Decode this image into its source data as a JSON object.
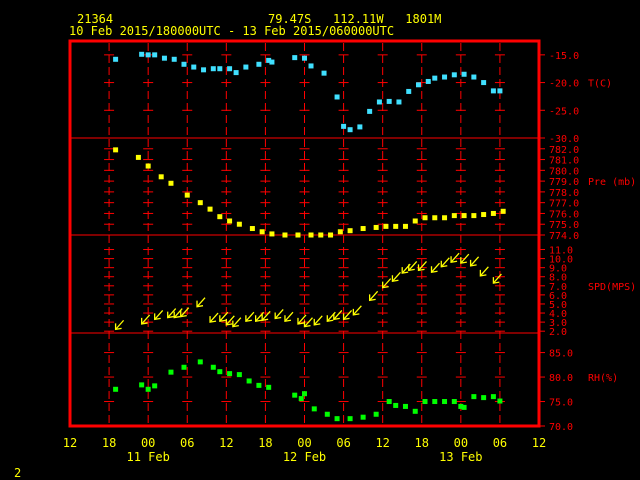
{
  "header": {
    "station_id": "21364",
    "location": "79.47S   112.11W   1801M",
    "date_range": "10 Feb 2015/180000UTC - 13 Feb 2015/060000UTC"
  },
  "page_number": "2",
  "colors": {
    "background": "#000000",
    "frame": "#ff0000",
    "grid": "#ff0000",
    "panel_label": "#ff0000",
    "axis_text": "#ffff00",
    "temperature": "#40e0ff",
    "pressure": "#ffff00",
    "wind": "#ffff00",
    "humidity": "#00ff00"
  },
  "chart_data": {
    "type": "scatter",
    "x_unit": "hours since 10 Feb 2015 12:00 UTC",
    "x_ticks": [
      {
        "h": 0,
        "label": "12"
      },
      {
        "h": 6,
        "label": "18"
      },
      {
        "h": 12,
        "label": "00"
      },
      {
        "h": 18,
        "label": "06"
      },
      {
        "h": 24,
        "label": "12"
      },
      {
        "h": 30,
        "label": "18"
      },
      {
        "h": 36,
        "label": "00"
      },
      {
        "h": 42,
        "label": "06"
      },
      {
        "h": 48,
        "label": "12"
      },
      {
        "h": 54,
        "label": "18"
      },
      {
        "h": 60,
        "label": "00"
      },
      {
        "h": 66,
        "label": "06"
      },
      {
        "h": 72,
        "label": "12"
      }
    ],
    "day_labels": [
      {
        "h": 12,
        "label": "11 Feb"
      },
      {
        "h": 36,
        "label": "12 Feb"
      },
      {
        "h": 60,
        "label": "13 Feb"
      }
    ],
    "panels": [
      {
        "name": "temperature",
        "label": "T(C)",
        "ylim": [
          -30,
          -12.5
        ],
        "ticks": [
          -15,
          -20,
          -25,
          -30
        ],
        "tick_labels": [
          "-15.0",
          "-20.0",
          "-25.0",
          "-30.0"
        ],
        "x": [
          7,
          11,
          12,
          13,
          14.5,
          16,
          17.5,
          19,
          20.5,
          22,
          23,
          24.5,
          25.5,
          27,
          29,
          30.5,
          31,
          34.5,
          36,
          37,
          39,
          41,
          42,
          43,
          44.5,
          46,
          47.5,
          49,
          50.5,
          52,
          53.5,
          55,
          56,
          57.5,
          59,
          60.5,
          62,
          63.5,
          65,
          66
        ],
        "y": [
          -15.8,
          -14.9,
          -15.0,
          -15.0,
          -15.6,
          -15.8,
          -16.7,
          -17.2,
          -17.7,
          -17.5,
          -17.5,
          -17.5,
          -18.2,
          -17.2,
          -16.7,
          -16.0,
          -16.3,
          -15.5,
          -15.6,
          -17.0,
          -18.3,
          -22.6,
          -27.9,
          -28.5,
          -28.0,
          -25.2,
          -23.5,
          -23.4,
          -23.5,
          -21.6,
          -20.4,
          -19.8,
          -19.2,
          -19.0,
          -18.6,
          -18.5,
          -19.0,
          -20.0,
          -21.5,
          -21.5
        ]
      },
      {
        "name": "pressure",
        "label": "Pre (mb)",
        "ylim": [
          774,
          783
        ],
        "ticks": [
          782,
          781,
          780,
          779,
          778,
          777,
          776,
          775,
          774
        ],
        "tick_labels": [
          "782.0",
          "781.0",
          "780.0",
          "779.0",
          "778.0",
          "777.0",
          "776.0",
          "775.0",
          "774.0"
        ],
        "x": [
          7,
          10.5,
          12,
          14,
          15.5,
          18,
          20,
          21.5,
          23,
          24.5,
          26,
          28,
          29.5,
          31,
          33,
          35,
          37,
          38.5,
          40,
          41.5,
          43,
          45,
          47,
          48.5,
          50,
          51.5,
          53,
          54.5,
          56,
          57.5,
          59,
          60.5,
          62,
          63.5,
          65,
          66.5
        ],
        "y": [
          781.9,
          781.2,
          780.4,
          779.4,
          778.8,
          777.7,
          777.0,
          776.4,
          775.7,
          775.3,
          775.0,
          774.6,
          774.3,
          774.1,
          774.0,
          774.0,
          774.0,
          774.0,
          774.0,
          774.3,
          774.4,
          774.6,
          774.7,
          774.8,
          774.8,
          774.8,
          775.3,
          775.6,
          775.6,
          775.6,
          775.8,
          775.8,
          775.8,
          775.9,
          776.0,
          776.2
        ]
      },
      {
        "name": "wind_speed",
        "label": "SPD(MPS)",
        "ylim": [
          1.8,
          12.6
        ],
        "ticks": [
          11,
          10,
          9,
          8,
          7,
          6,
          5,
          4,
          3,
          2
        ],
        "tick_labels": [
          "11.0",
          "10.0",
          "9.0",
          "8.0",
          "7.0",
          "6.0",
          "5.0",
          "4.0",
          "3.0",
          "2.0"
        ],
        "x": [
          7,
          11,
          13,
          15,
          16,
          17,
          19.5,
          21.5,
          23,
          24,
          25,
          27,
          28.5,
          29.5,
          31.5,
          33,
          35,
          36,
          37.5,
          39.5,
          40.5,
          42,
          43.5,
          46,
          48,
          49.5,
          51,
          52,
          53.5,
          55.5,
          57,
          58.5,
          60,
          61.5,
          63,
          65
        ],
        "y": [
          2.2,
          2.8,
          3.3,
          3.5,
          3.5,
          3.6,
          4.7,
          3.0,
          3.1,
          2.7,
          2.5,
          3.1,
          3.1,
          3.2,
          3.4,
          3.1,
          2.8,
          2.5,
          2.7,
          3.1,
          3.3,
          3.3,
          3.8,
          5.4,
          6.8,
          7.5,
          8.4,
          8.7,
          8.7,
          8.5,
          9.1,
          9.6,
          9.5,
          9.2,
          8.1,
          7.3
        ]
      },
      {
        "name": "humidity",
        "label": "RH(%)",
        "ylim": [
          70,
          89
        ],
        "ticks": [
          85,
          80,
          75,
          70
        ],
        "tick_labels": [
          "85.0",
          "80.0",
          "75.0",
          "70.0"
        ],
        "x": [
          7,
          11,
          12,
          13,
          15.5,
          17.5,
          20,
          22,
          23,
          24.5,
          26,
          27.5,
          29,
          30.5,
          34.5,
          35.5,
          36,
          37.5,
          39.5,
          41,
          43,
          45,
          47,
          49,
          50,
          51.5,
          53,
          54.5,
          56,
          57.5,
          59,
          60,
          60.5,
          62,
          63.5,
          65,
          66
        ],
        "y": [
          77.5,
          78.4,
          77.5,
          78.2,
          81.0,
          82.0,
          83.1,
          82.0,
          81.1,
          80.7,
          80.5,
          79.2,
          78.3,
          77.9,
          76.3,
          75.6,
          76.6,
          73.5,
          72.4,
          71.5,
          71.5,
          71.8,
          72.4,
          75.0,
          74.2,
          74.0,
          73.0,
          75.0,
          75.0,
          75.0,
          75.0,
          74.0,
          73.8,
          76.0,
          75.8,
          76.0,
          75.1
        ]
      }
    ]
  }
}
